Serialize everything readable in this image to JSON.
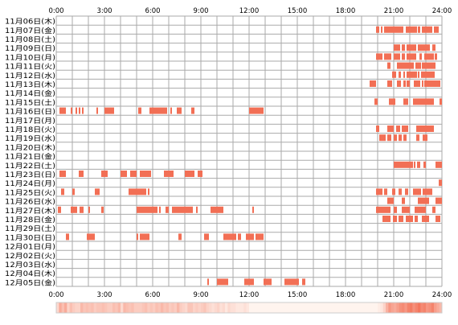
{
  "chart_data": {
    "type": "heatmap",
    "x_tick_labels": [
      "0:00",
      "3:00",
      "6:00",
      "9:00",
      "12:00",
      "15:00",
      "18:00",
      "21:00",
      "24:00"
    ],
    "x_range_hours": [
      0,
      24
    ],
    "row_labels": [
      "11月06日(木)",
      "11月07日(金)",
      "11月08日(土)",
      "11月09日(日)",
      "11月10日(月)",
      "11月11日(火)",
      "11月12日(水)",
      "11月13日(木)",
      "11月14日(金)",
      "11月15日(土)",
      "11月16日(日)",
      "11月17日(月)",
      "11月18日(火)",
      "11月19日(水)",
      "11月20日(木)",
      "11月21日(金)",
      "11月22日(土)",
      "11月23日(日)",
      "11月24日(月)",
      "11月25日(火)",
      "11月26日(水)",
      "11月27日(木)",
      "11月28日(金)",
      "11月29日(土)",
      "11月30日(日)",
      "12月01日(月)",
      "12月02日(火)",
      "12月03日(水)",
      "12月04日(木)",
      "12月05日(金)"
    ],
    "grid": true,
    "colors": {
      "mark": "#f26f55",
      "grid": "#aaaaaa",
      "heat_base": "#fff4ee"
    },
    "activity": [
      [],
      [
        [
          19.9,
          20.1
        ],
        [
          20.2,
          20.3
        ],
        [
          20.4,
          21.6
        ],
        [
          21.75,
          22.45
        ],
        [
          22.5,
          22.65
        ],
        [
          22.75,
          23.4
        ],
        [
          23.5,
          23.8
        ]
      ],
      [],
      [
        [
          21.0,
          21.4
        ],
        [
          21.5,
          21.7
        ],
        [
          21.8,
          22.4
        ],
        [
          22.5,
          23.25
        ],
        [
          23.4,
          23.6
        ]
      ],
      [
        [
          19.9,
          20.3
        ],
        [
          20.4,
          20.85
        ],
        [
          21.0,
          21.4
        ],
        [
          21.5,
          21.7
        ],
        [
          21.8,
          22.4
        ],
        [
          22.6,
          22.75
        ],
        [
          22.9,
          23.5
        ],
        [
          23.55,
          23.7
        ]
      ],
      [
        [
          20.6,
          20.8
        ],
        [
          21.2,
          22.25
        ],
        [
          22.35,
          22.7
        ],
        [
          22.75,
          23.6
        ]
      ],
      [
        [
          20.9,
          21.15
        ],
        [
          21.3,
          21.45
        ],
        [
          21.6,
          21.7
        ],
        [
          21.8,
          22.45
        ],
        [
          22.5,
          22.6
        ],
        [
          22.7,
          23.55
        ]
      ],
      [
        [
          19.5,
          19.9
        ],
        [
          20.6,
          20.9
        ],
        [
          21.2,
          21.45
        ],
        [
          21.6,
          21.75
        ],
        [
          21.8,
          22.0
        ],
        [
          22.25,
          22.65
        ],
        [
          22.75,
          22.85
        ],
        [
          22.9,
          23.9
        ]
      ],
      [],
      [
        [
          19.8,
          20.0
        ],
        [
          20.7,
          21.1
        ],
        [
          21.6,
          21.9
        ],
        [
          22.2,
          23.5
        ],
        [
          23.85,
          24.0
        ]
      ],
      [
        [
          0.2,
          0.6
        ],
        [
          0.9,
          1.0
        ],
        [
          1.2,
          1.3
        ],
        [
          1.4,
          1.5
        ],
        [
          1.6,
          1.7
        ],
        [
          2.5,
          2.6
        ],
        [
          3.0,
          3.6
        ],
        [
          5.1,
          5.3
        ],
        [
          5.8,
          6.9
        ],
        [
          7.1,
          7.2
        ],
        [
          7.5,
          7.8
        ],
        [
          8.4,
          8.6
        ],
        [
          12.0,
          12.9
        ]
      ],
      [],
      [
        [
          19.9,
          20.1
        ],
        [
          20.6,
          21.0
        ],
        [
          21.15,
          21.4
        ],
        [
          21.5,
          21.9
        ],
        [
          22.4,
          23.5
        ]
      ],
      [
        [
          20.1,
          20.5
        ],
        [
          20.6,
          20.85
        ],
        [
          21.0,
          21.2
        ],
        [
          21.3,
          21.5
        ],
        [
          21.6,
          21.8
        ],
        [
          22.4,
          22.6
        ],
        [
          22.8,
          23.1
        ]
      ],
      [],
      [],
      [
        [
          21.0,
          22.2
        ],
        [
          22.25,
          22.35
        ],
        [
          22.45,
          22.65
        ],
        [
          22.85,
          23.0
        ],
        [
          23.6,
          24.0
        ]
      ],
      [
        [
          0.2,
          0.6
        ],
        [
          1.4,
          1.7
        ],
        [
          2.8,
          3.2
        ],
        [
          4.0,
          4.4
        ],
        [
          4.6,
          5.0
        ],
        [
          5.2,
          5.9
        ],
        [
          6.7,
          7.3
        ],
        [
          8.0,
          8.6
        ],
        [
          8.8,
          9.1
        ]
      ],
      [
        [
          23.8,
          24.0
        ]
      ],
      [
        [
          0.3,
          0.5
        ],
        [
          1.0,
          1.15
        ],
        [
          2.4,
          2.7
        ],
        [
          4.5,
          5.6
        ],
        [
          5.7,
          5.8
        ],
        [
          19.9,
          20.3
        ],
        [
          20.4,
          20.6
        ],
        [
          20.9,
          21.1
        ],
        [
          21.3,
          21.5
        ],
        [
          21.7,
          21.9
        ],
        [
          22.2,
          22.7
        ],
        [
          22.8,
          23.4
        ]
      ],
      [
        [
          20.6,
          21.0
        ],
        [
          21.5,
          21.7
        ],
        [
          22.5,
          23.2
        ],
        [
          23.6,
          24.0
        ]
      ],
      [
        [
          0.1,
          0.3
        ],
        [
          0.9,
          1.3
        ],
        [
          1.45,
          1.7
        ],
        [
          2.0,
          2.1
        ],
        [
          2.8,
          2.95
        ],
        [
          5.0,
          6.3
        ],
        [
          6.4,
          6.5
        ],
        [
          6.8,
          7.0
        ],
        [
          7.2,
          8.5
        ],
        [
          8.7,
          8.8
        ],
        [
          9.6,
          10.4
        ],
        [
          12.2,
          12.3
        ],
        [
          19.9,
          20.8
        ],
        [
          21.0,
          21.2
        ],
        [
          21.5,
          22.0
        ],
        [
          22.3,
          23.0
        ],
        [
          23.4,
          23.6
        ]
      ],
      [
        [
          20.3,
          20.8
        ],
        [
          20.95,
          21.2
        ],
        [
          21.3,
          21.6
        ],
        [
          21.75,
          22.2
        ],
        [
          22.3,
          22.5
        ],
        [
          22.75,
          23.2
        ],
        [
          23.6,
          23.9
        ]
      ],
      [],
      [
        [
          0.6,
          0.8
        ],
        [
          1.9,
          2.4
        ],
        [
          5.0,
          5.1
        ],
        [
          5.2,
          5.8
        ],
        [
          7.6,
          7.8
        ],
        [
          9.2,
          9.5
        ],
        [
          10.4,
          11.2
        ],
        [
          11.3,
          11.5
        ],
        [
          11.8,
          12.3
        ],
        [
          12.4,
          12.9
        ]
      ],
      [],
      [],
      [],
      [],
      [
        [
          9.4,
          9.5
        ],
        [
          10.0,
          10.7
        ],
        [
          11.7,
          12.3
        ],
        [
          12.9,
          13.4
        ],
        [
          14.2,
          15.1
        ],
        [
          15.3,
          15.5
        ]
      ]
    ],
    "density": [
      0.2,
      0.55,
      0.4,
      0.55,
      0.25,
      0.4,
      0.3,
      0.25,
      0.25,
      0.45,
      0.35,
      0.4,
      0.35,
      0.4,
      0.3,
      0.35,
      0.35,
      0.4,
      0.35,
      0.3,
      0.3,
      0.4,
      0.35,
      0.45,
      0.2,
      0.45,
      0.4,
      0.35,
      0.4,
      0.3,
      0.3,
      0.3,
      0.35,
      0.4,
      0.3,
      0.35,
      0.3,
      0.4,
      0.35,
      0.45,
      0.35,
      0.4,
      0.3,
      0.35,
      0.3,
      0.45,
      0.3,
      0.25,
      0.2,
      0.35,
      0.35,
      0.25,
      0.3,
      0.25,
      0.3,
      0.35,
      0.25,
      0.2,
      0.15,
      0.2,
      0.25,
      0.15,
      0.2,
      0.1,
      0.2,
      0.15,
      0.15,
      0.1,
      0.1,
      0.1,
      0.15,
      0.1,
      0.0,
      0.0,
      0.0,
      0.0,
      0.0,
      0.0,
      0.0,
      0.0,
      0.0,
      0.0,
      0.0,
      0.0,
      0.0,
      0.0,
      0.0,
      0.0,
      0.0,
      0.0,
      0.0,
      0.0,
      0.0,
      0.0,
      0.0,
      0.0,
      0.0,
      0.0,
      0.0,
      0.0,
      0.0,
      0.0,
      0.0,
      0.0,
      0.0,
      0.0,
      0.0,
      0.0,
      0.0,
      0.0,
      0.0,
      0.0,
      0.0,
      0.0,
      0.0,
      0.0,
      0.0,
      0.0,
      0.0,
      0.0,
      0.05,
      0.1,
      0.25,
      0.5,
      0.7,
      0.6,
      0.55,
      0.65,
      0.75,
      0.8,
      0.7,
      0.85,
      0.9,
      0.75,
      0.85,
      0.95,
      0.8,
      0.85,
      0.7,
      0.75,
      0.85,
      0.65,
      0.55,
      0.45
    ]
  }
}
